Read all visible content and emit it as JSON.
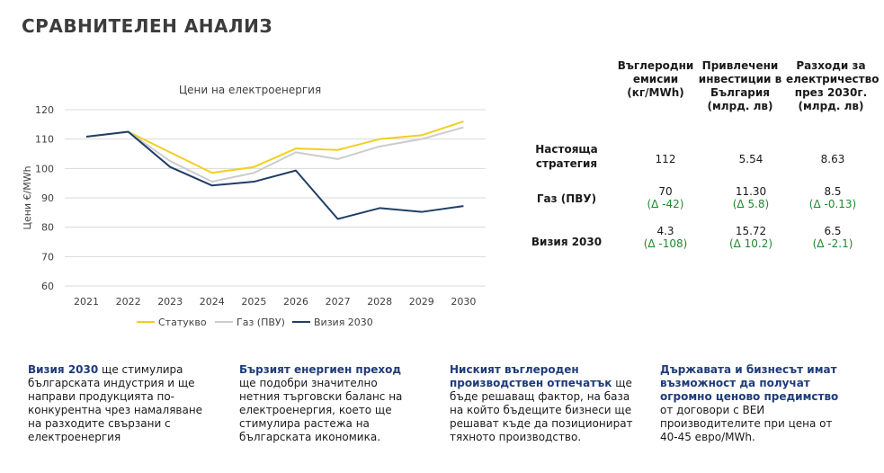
{
  "page": {
    "title": "СРАВНИТЕЛЕН АНАЛИЗ"
  },
  "chart_data": {
    "type": "line",
    "title": "Цени на електроенергия",
    "ylabel": "Цени €/MWh",
    "xlabel": "",
    "categories": [
      "2021",
      "2022",
      "2023",
      "2024",
      "2025",
      "2026",
      "2027",
      "2028",
      "2029",
      "2030"
    ],
    "ylim": [
      60,
      120
    ],
    "yticks": [
      60,
      70,
      80,
      90,
      100,
      110,
      120
    ],
    "grid": true,
    "legend": "bottom",
    "series": [
      {
        "name": "Статукво",
        "color": "#f2cf1c",
        "values": [
          110.8,
          112.5,
          105.5,
          98.5,
          100.5,
          106.8,
          106.3,
          110.0,
          111.3,
          116.0
        ]
      },
      {
        "name": "Газ (ПВУ)",
        "color": "#cccccc",
        "values": [
          110.8,
          112.5,
          102.5,
          95.5,
          98.5,
          105.5,
          103.2,
          107.5,
          110.0,
          114.0
        ]
      },
      {
        "name": "Визия 2030",
        "color": "#1f3e66",
        "values": [
          110.8,
          112.5,
          100.5,
          94.2,
          95.5,
          99.3,
          82.8,
          86.5,
          85.2,
          87.2
        ]
      }
    ]
  },
  "table": {
    "headers": [
      "Въглеродни емисии (кг/MWh)",
      "Привлечени инвестиции в България (млрд. лв)",
      "Разходи за електричество през 2030г. (млрд. лв)"
    ],
    "rows": [
      {
        "label": "Настояща стратегия",
        "cells": [
          {
            "value": "112",
            "delta": ""
          },
          {
            "value": "5.54",
            "delta": ""
          },
          {
            "value": "8.63",
            "delta": ""
          }
        ]
      },
      {
        "label": "Газ (ПВУ)",
        "cells": [
          {
            "value": "70",
            "delta": "(Δ -42)"
          },
          {
            "value": "11.30",
            "delta": "(Δ 5.8)"
          },
          {
            "value": "8.5",
            "delta": "(Δ -0.13)"
          }
        ]
      },
      {
        "label": "Визия 2030",
        "cells": [
          {
            "value": "4.3",
            "delta": "(Δ -108)"
          },
          {
            "value": "15.72",
            "delta": "(Δ 10.2)"
          },
          {
            "value": "6.5",
            "delta": "(Δ -2.1)"
          }
        ]
      }
    ]
  },
  "notes": [
    {
      "highlight": "Визия 2030",
      "text": " ще стимулира българската индустрия и ще направи продукцията по-конкурентна чрез намаляване на разходите свързани с електроенергия"
    },
    {
      "highlight": "Бързият енергиен преход",
      "text": " ще подобри значително нетния търговски баланс на електроенергия, което ще стимулира растежа на българската икономика."
    },
    {
      "highlight": "Ниският въглероден производствен отпечатък",
      "text": " ще бъде решаващ фактор, на база на който бъдещите бизнеси ще решават къде да позиционират тяхното производство."
    },
    {
      "highlight": "Държавата и бизнесът имат възможност да получат огромно ценово предимство",
      "text": " от договори с ВЕИ производителите при цена от 40-45 евро/MWh."
    }
  ]
}
